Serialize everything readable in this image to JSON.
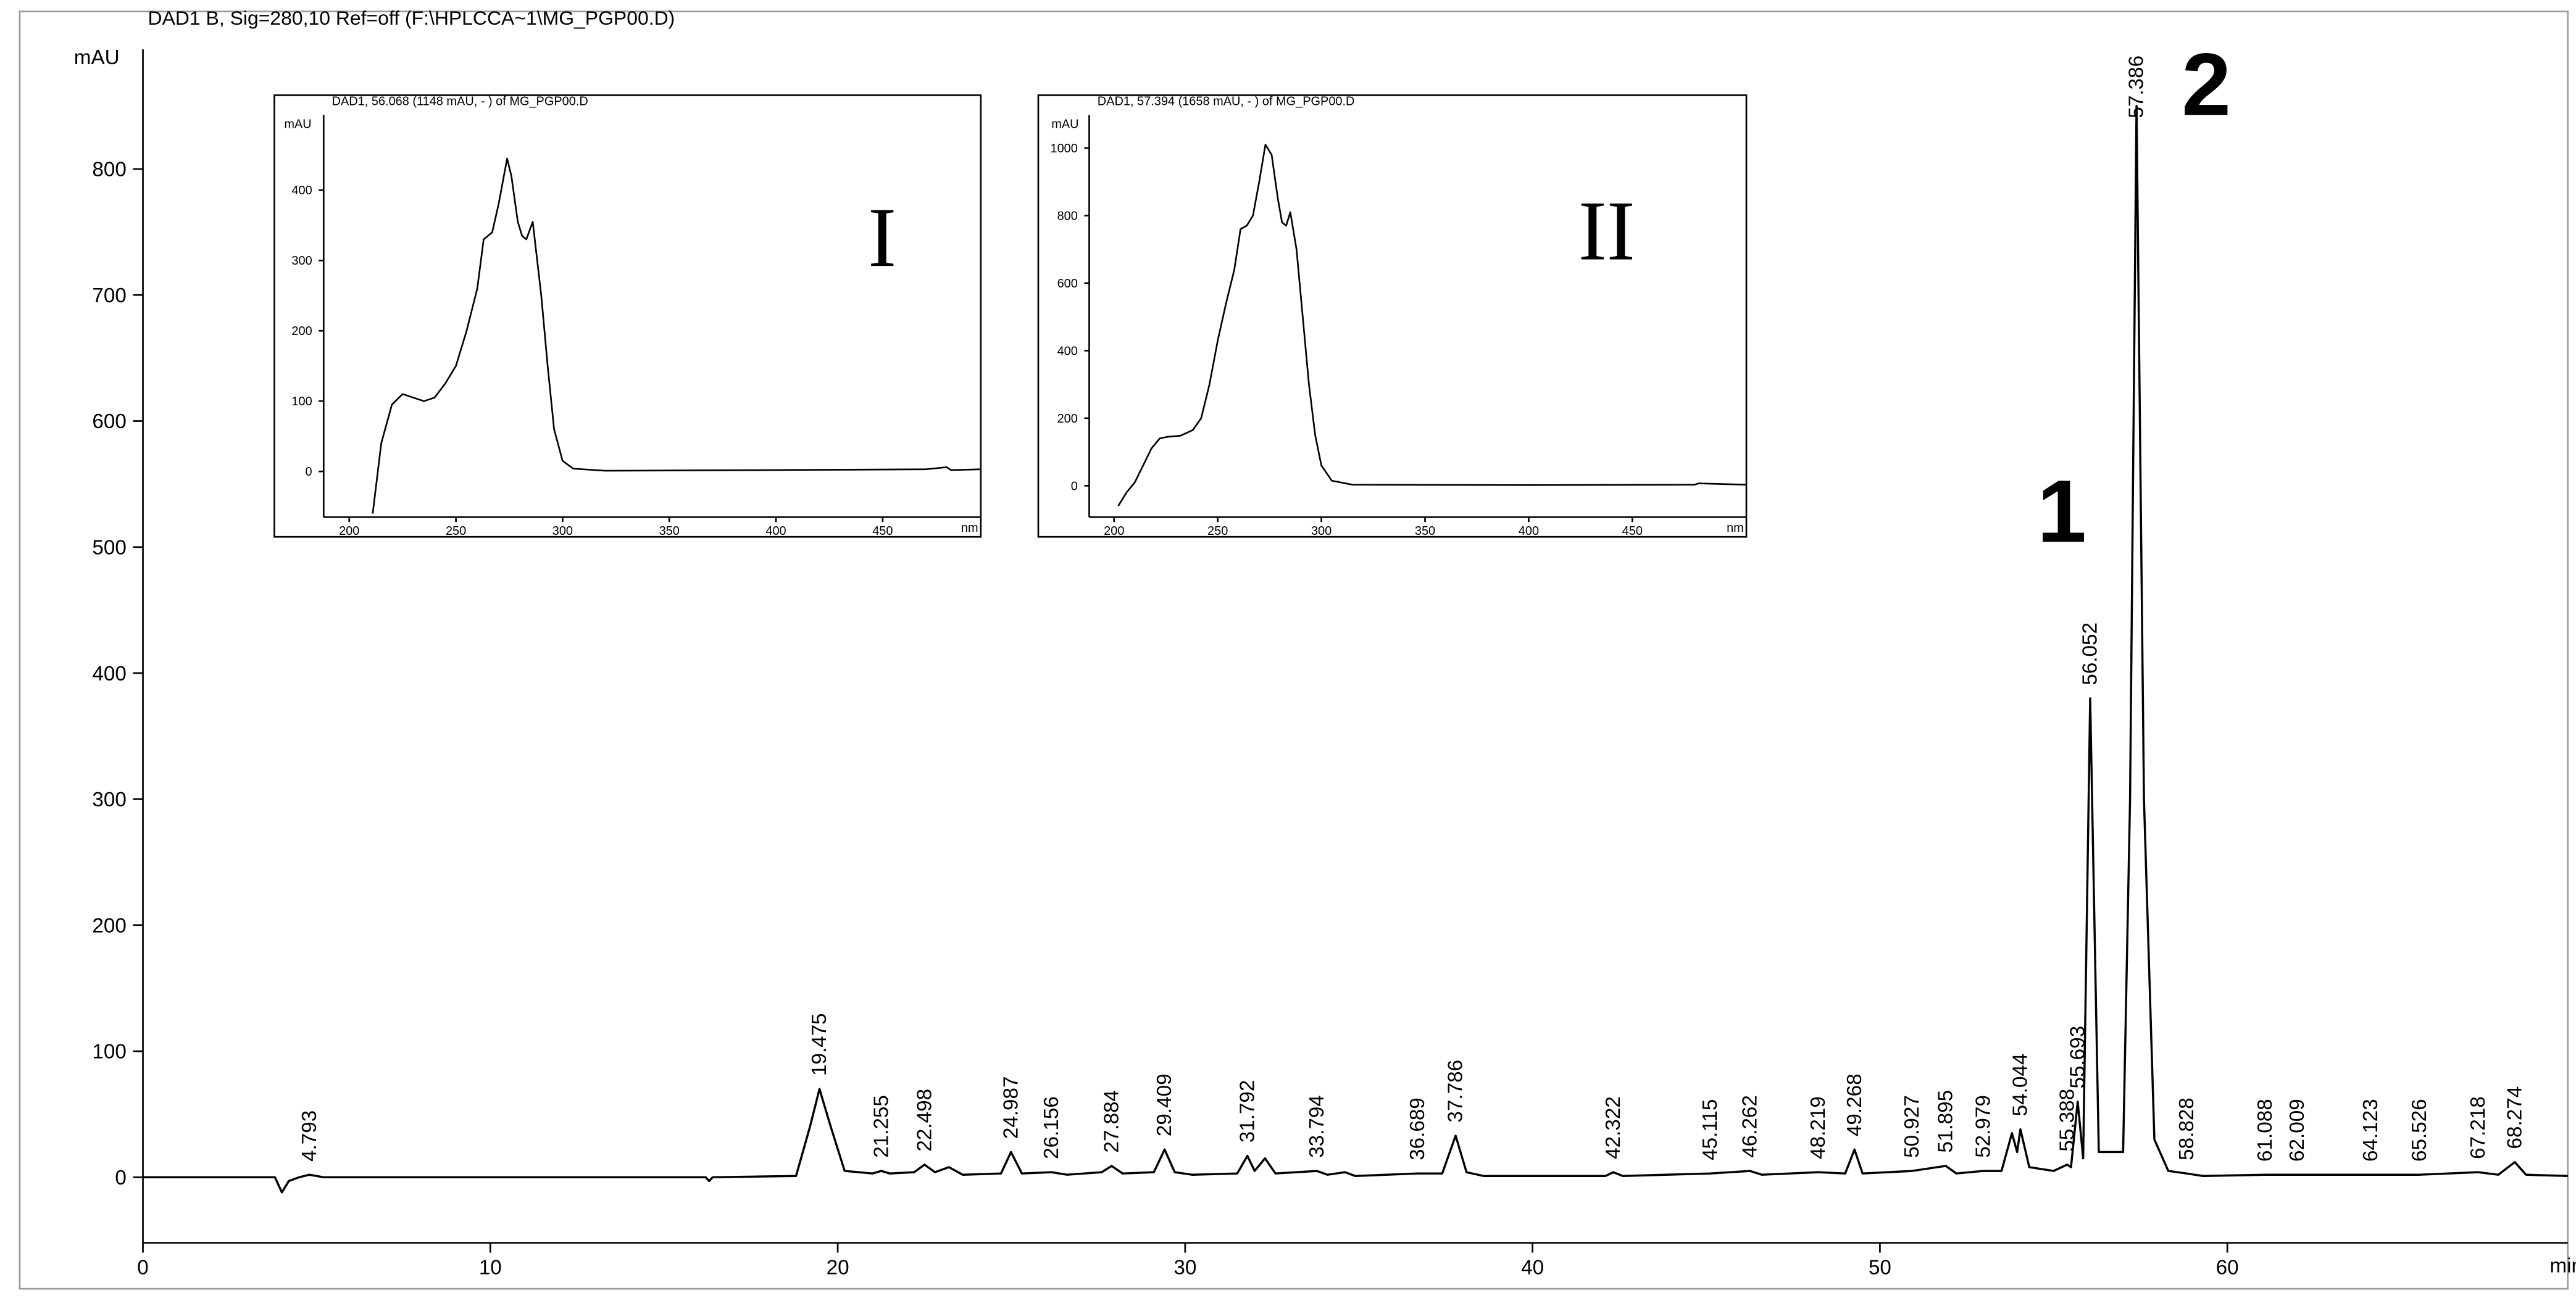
{
  "chart_data": [
    {
      "type": "line",
      "title": "DAD1 B, Sig=280,10 Ref=off (F:\\HPLCCA~1\\MG_PGP00.D)",
      "y_label": "mAU",
      "x_label": "min",
      "color": "#000000",
      "xlim": [
        0,
        69.8
      ],
      "ylim": [
        -52,
        895
      ],
      "xticks": [
        0,
        10,
        20,
        30,
        40,
        50,
        60
      ],
      "yticks": [
        0,
        100,
        200,
        300,
        400,
        500,
        600,
        700,
        800
      ],
      "x": [
        0,
        3.8,
        4.0,
        4.2,
        4.5,
        4.793,
        5.2,
        16.2,
        16.3,
        16.4,
        18.8,
        19.2,
        19.475,
        19.8,
        20.2,
        21.0,
        21.255,
        21.5,
        22.2,
        22.498,
        22.8,
        23.2,
        23.6,
        24.7,
        24.987,
        25.3,
        26.156,
        26.6,
        27.6,
        27.884,
        28.2,
        29.1,
        29.409,
        29.7,
        30.2,
        31.5,
        31.792,
        32.0,
        32.3,
        32.6,
        33.794,
        34.1,
        34.6,
        34.9,
        36.689,
        37.4,
        37.786,
        38.1,
        38.6,
        42.1,
        42.322,
        42.6,
        45.115,
        46.262,
        46.6,
        48.219,
        49.0,
        49.268,
        49.5,
        50.927,
        51.895,
        52.2,
        52.979,
        53.5,
        53.8,
        53.95,
        54.044,
        54.3,
        55.0,
        55.388,
        55.5,
        55.693,
        55.85,
        56.052,
        56.3,
        57.0,
        57.2,
        57.386,
        57.6,
        57.9,
        58.3,
        58.828,
        59.3,
        61.088,
        62.009,
        64.123,
        65.526,
        67.218,
        67.8,
        68.274,
        68.6,
        69.8
      ],
      "values": [
        0,
        0,
        -12,
        -3,
        0,
        2,
        0,
        0,
        -3,
        0,
        1,
        40,
        70,
        40,
        5,
        3,
        5,
        3,
        4,
        10,
        4,
        8,
        2,
        3,
        20,
        3,
        4,
        2,
        4,
        9,
        3,
        4,
        22,
        4,
        2,
        3,
        17,
        5,
        15,
        3,
        5,
        2,
        4,
        1,
        3,
        3,
        33,
        4,
        1,
        1,
        4,
        1,
        3,
        5,
        2,
        4,
        3,
        22,
        3,
        5,
        9,
        3,
        5,
        5,
        35,
        20,
        38,
        8,
        5,
        10,
        8,
        60,
        15,
        380,
        20,
        20,
        300,
        850,
        300,
        30,
        5,
        3,
        1,
        2,
        2,
        2,
        2,
        4,
        2,
        12,
        2,
        1
      ],
      "peaks": [
        4.793,
        19.475,
        21.255,
        22.498,
        24.987,
        26.156,
        27.884,
        29.409,
        31.792,
        33.794,
        36.689,
        37.786,
        42.322,
        45.115,
        46.262,
        48.219,
        49.268,
        50.927,
        51.895,
        52.979,
        54.044,
        55.388,
        55.693,
        56.052,
        57.386,
        58.828,
        61.088,
        62.009,
        64.123,
        65.526,
        67.218,
        68.274
      ],
      "annotations": [
        "1",
        "2"
      ]
    },
    {
      "type": "line",
      "title": "DAD1, 56.068 (1148 mAU, - ) of MG_PGP00.D",
      "y_label": "mAU",
      "x_label": "nm",
      "label": "I",
      "color": "#000000",
      "xlim": [
        188,
        496
      ],
      "ylim": [
        -65,
        507
      ],
      "xticks": [
        200,
        250,
        300,
        350,
        400,
        450
      ],
      "yticks": [
        0,
        100,
        200,
        300,
        400
      ],
      "x": [
        211,
        215,
        220,
        225,
        230,
        235,
        240,
        245,
        250,
        255,
        260,
        263,
        267,
        270,
        274,
        276,
        279,
        281,
        283,
        286,
        290,
        293,
        296,
        300,
        305,
        320,
        400,
        470,
        480,
        482,
        496
      ],
      "values": [
        -60,
        40,
        95,
        110,
        105,
        100,
        105,
        125,
        150,
        200,
        260,
        330,
        340,
        380,
        445,
        420,
        355,
        335,
        330,
        355,
        250,
        150,
        60,
        15,
        4,
        1,
        2,
        3,
        6,
        2,
        3
      ]
    },
    {
      "type": "line",
      "title": "DAD1, 57.394 (1658 mAU, - ) of MG_PGP00.D",
      "y_label": "mAU",
      "x_label": "nm",
      "label": "II",
      "color": "#000000",
      "xlim": [
        188,
        505
      ],
      "ylim": [
        -93,
        1098
      ],
      "xticks": [
        200,
        250,
        300,
        350,
        400,
        450
      ],
      "yticks": [
        0,
        200,
        400,
        600,
        800,
        1000
      ],
      "x": [
        202,
        206,
        210,
        214,
        218,
        222,
        226,
        232,
        238,
        242,
        246,
        250,
        254,
        258,
        261,
        264,
        267,
        270,
        273,
        276,
        279,
        281,
        283,
        285,
        288,
        291,
        294,
        297,
        300,
        305,
        315,
        400,
        480,
        482,
        505
      ],
      "values": [
        -60,
        -20,
        10,
        60,
        110,
        140,
        145,
        148,
        165,
        200,
        300,
        430,
        540,
        640,
        760,
        770,
        800,
        900,
        1010,
        980,
        850,
        780,
        770,
        810,
        700,
        500,
        300,
        150,
        60,
        15,
        3,
        2,
        3,
        7,
        3
      ]
    }
  ]
}
